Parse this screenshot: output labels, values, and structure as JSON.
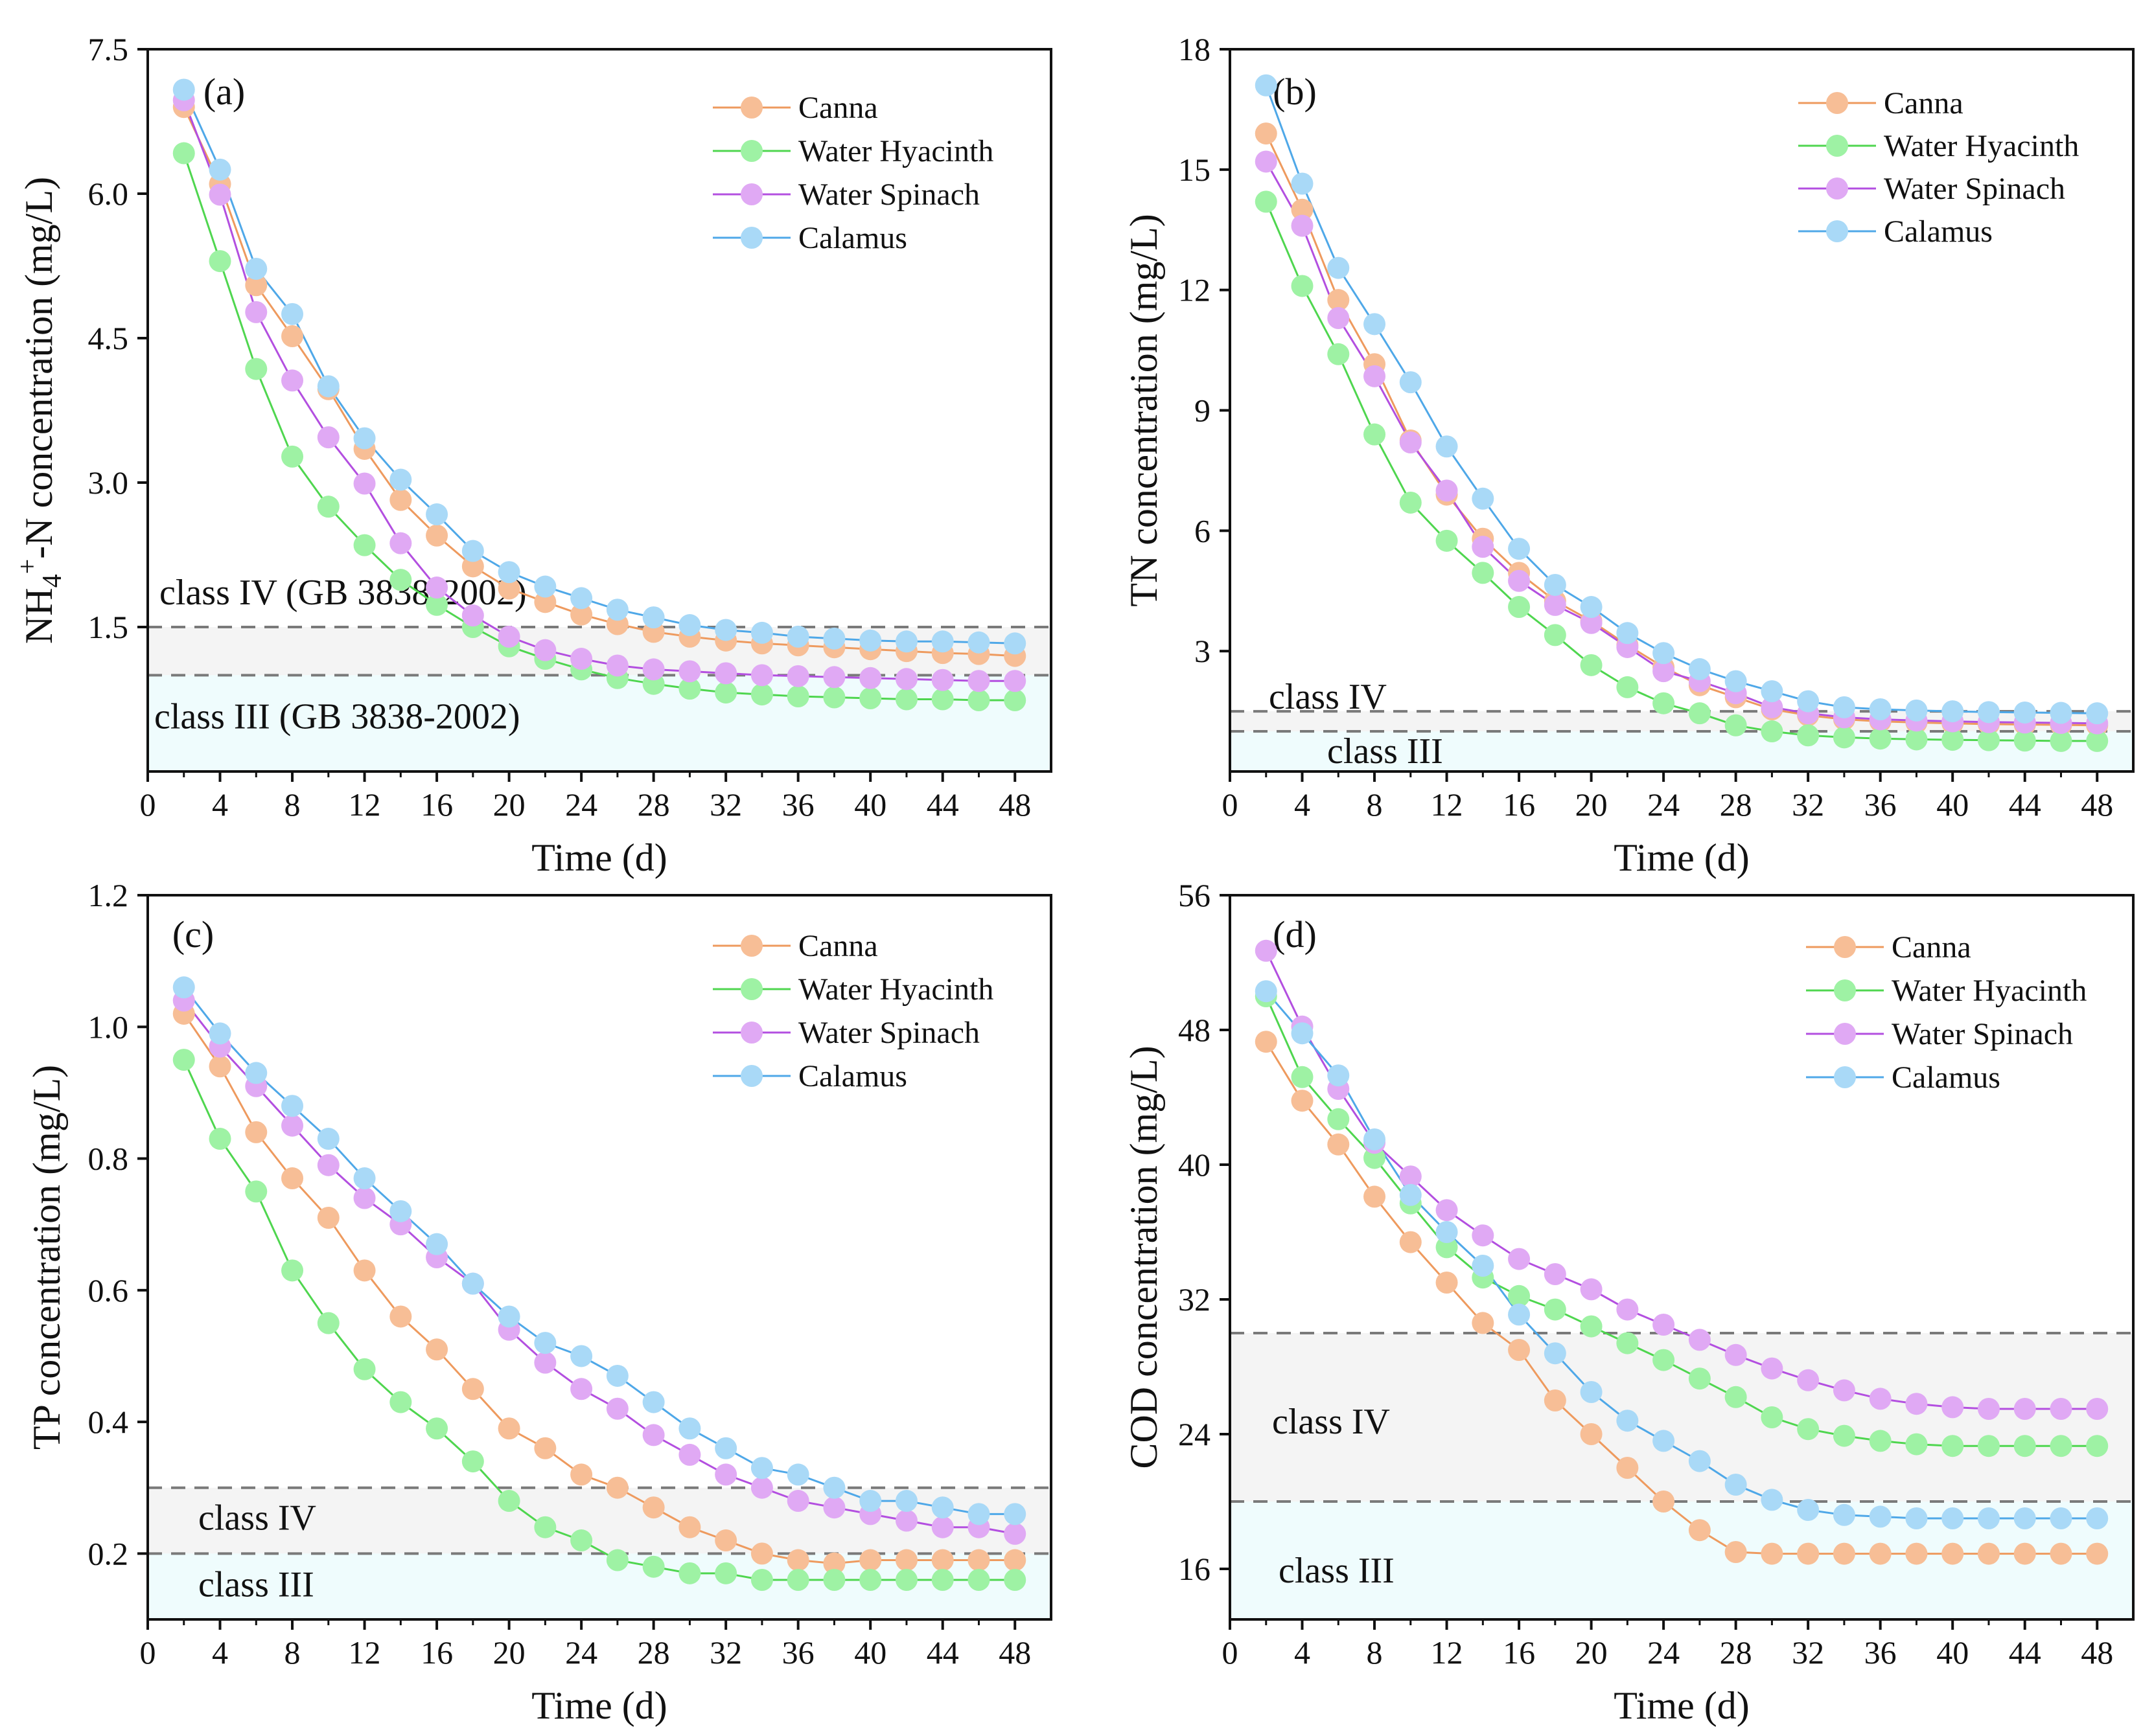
{
  "figure": {
    "legend_entries": [
      "Canna",
      "Water Hyacinth",
      "Water Spinach",
      "Calamus"
    ],
    "series_colors": {
      "Canna": "#f7be96",
      "Water Hyacinth": "#9ef2a4",
      "Water Spinach": "#e0a9f4",
      "Calamus": "#a9d9f7"
    },
    "line_colors": {
      "Canna": "#ee9a5e",
      "Water Hyacinth": "#4fd64f",
      "Water Spinach": "#b34fe0",
      "Calamus": "#4fa8e8"
    },
    "band_colors": {
      "upper": "#f4f4f4",
      "lower": "#effcfd"
    }
  },
  "chart_data": [
    {
      "id": "a",
      "type": "line",
      "panel_label": "(a)",
      "ylabel_main": "NH",
      "ylabel_sub": "4",
      "ylabel_sup": "+",
      "ylabel_rest": "-N concentration (mg/L)",
      "xlabel": "Time (d)",
      "xlim": [
        0,
        50
      ],
      "ylim": [
        0,
        7.5
      ],
      "xticks": [
        0,
        4,
        8,
        12,
        16,
        20,
        24,
        28,
        32,
        36,
        40,
        44,
        48
      ],
      "yticks": [
        1.5,
        3.0,
        4.5,
        6.0,
        7.5
      ],
      "ytick_labels": [
        "1.5",
        "3.0",
        "4.5",
        "6.0",
        "7.5"
      ],
      "x": [
        2,
        4,
        6,
        8,
        10,
        12,
        14,
        16,
        18,
        20,
        22,
        24,
        26,
        28,
        30,
        32,
        34,
        36,
        38,
        40,
        42,
        44,
        46,
        48
      ],
      "thresholds": [
        {
          "value": 1.5,
          "label": "class IV (GB 3838-2002)"
        },
        {
          "value": 1.0,
          "label": "class III (GB 3838-2002)"
        }
      ],
      "series": [
        {
          "name": "Canna",
          "values": [
            6.9,
            6.1,
            5.05,
            4.52,
            3.97,
            3.35,
            2.82,
            2.45,
            2.13,
            1.9,
            1.76,
            1.63,
            1.53,
            1.45,
            1.4,
            1.36,
            1.33,
            1.31,
            1.29,
            1.27,
            1.25,
            1.23,
            1.22,
            1.2
          ]
        },
        {
          "name": "Water Hyacinth",
          "values": [
            6.42,
            5.3,
            4.18,
            3.27,
            2.75,
            2.35,
            1.99,
            1.73,
            1.5,
            1.3,
            1.17,
            1.06,
            0.97,
            0.91,
            0.86,
            0.82,
            0.8,
            0.78,
            0.77,
            0.76,
            0.75,
            0.75,
            0.74,
            0.74
          ]
        },
        {
          "name": "Water Spinach",
          "values": [
            6.97,
            5.99,
            4.77,
            4.06,
            3.47,
            2.99,
            2.37,
            1.91,
            1.62,
            1.4,
            1.26,
            1.17,
            1.1,
            1.06,
            1.04,
            1.02,
            1.0,
            0.99,
            0.98,
            0.97,
            0.96,
            0.95,
            0.94,
            0.94
          ]
        },
        {
          "name": "Calamus",
          "values": [
            7.08,
            6.25,
            5.22,
            4.75,
            4.0,
            3.46,
            3.03,
            2.67,
            2.29,
            2.07,
            1.92,
            1.8,
            1.68,
            1.6,
            1.52,
            1.47,
            1.44,
            1.4,
            1.38,
            1.36,
            1.35,
            1.35,
            1.34,
            1.33
          ]
        }
      ]
    },
    {
      "id": "b",
      "type": "line",
      "panel_label": "(b)",
      "ylabel": "TN concentration (mg/L)",
      "xlabel": "Time (d)",
      "xlim": [
        0,
        50
      ],
      "ylim": [
        0,
        18
      ],
      "xticks": [
        0,
        4,
        8,
        12,
        16,
        20,
        24,
        28,
        32,
        36,
        40,
        44,
        48
      ],
      "yticks": [
        3,
        6,
        9,
        12,
        15,
        18
      ],
      "ytick_labels": [
        "3",
        "6",
        "9",
        "12",
        "15",
        "18"
      ],
      "x": [
        2,
        4,
        6,
        8,
        10,
        12,
        14,
        16,
        18,
        20,
        22,
        24,
        26,
        28,
        30,
        32,
        34,
        36,
        38,
        40,
        42,
        44,
        46,
        48
      ],
      "thresholds": [
        {
          "value": 1.5,
          "label": "class IV"
        },
        {
          "value": 1.0,
          "label": "class III"
        }
      ],
      "series": [
        {
          "name": "Canna",
          "values": [
            15.9,
            14.0,
            11.75,
            10.15,
            8.25,
            6.9,
            5.8,
            4.95,
            4.25,
            3.75,
            3.15,
            2.6,
            2.15,
            1.85,
            1.55,
            1.4,
            1.3,
            1.25,
            1.22,
            1.2,
            1.18,
            1.17,
            1.16,
            1.15
          ]
        },
        {
          "name": "Water Hyacinth",
          "values": [
            14.2,
            12.1,
            10.4,
            8.4,
            6.7,
            5.75,
            4.95,
            4.1,
            3.4,
            2.65,
            2.1,
            1.7,
            1.45,
            1.15,
            1.0,
            0.9,
            0.85,
            0.82,
            0.8,
            0.79,
            0.78,
            0.77,
            0.76,
            0.76
          ]
        },
        {
          "name": "Water Spinach",
          "values": [
            15.2,
            13.6,
            11.3,
            9.85,
            8.2,
            7.0,
            5.6,
            4.75,
            4.15,
            3.7,
            3.1,
            2.5,
            2.25,
            1.95,
            1.6,
            1.45,
            1.35,
            1.3,
            1.27,
            1.25,
            1.23,
            1.22,
            1.21,
            1.2
          ]
        },
        {
          "name": "Calamus",
          "values": [
            17.1,
            14.65,
            12.55,
            11.15,
            9.7,
            8.1,
            6.8,
            5.55,
            4.65,
            4.1,
            3.45,
            2.95,
            2.55,
            2.25,
            2.0,
            1.75,
            1.6,
            1.55,
            1.52,
            1.5,
            1.48,
            1.47,
            1.46,
            1.45
          ]
        }
      ]
    },
    {
      "id": "c",
      "type": "line",
      "panel_label": "(c)",
      "ylabel": "TP concentration (mg/L)",
      "xlabel": "Time (d)",
      "xlim": [
        0,
        50
      ],
      "ylim": [
        0.1,
        1.2
      ],
      "xticks": [
        0,
        4,
        8,
        12,
        16,
        20,
        24,
        28,
        32,
        36,
        40,
        44,
        48
      ],
      "yticks": [
        0.2,
        0.4,
        0.6,
        0.8,
        1.0,
        1.2
      ],
      "ytick_labels": [
        "0.2",
        "0.4",
        "0.6",
        "0.8",
        "1.0",
        "1.2"
      ],
      "x": [
        2,
        4,
        6,
        8,
        10,
        12,
        14,
        16,
        18,
        20,
        22,
        24,
        26,
        28,
        30,
        32,
        34,
        36,
        38,
        40,
        42,
        44,
        46,
        48
      ],
      "thresholds": [
        {
          "value": 0.3,
          "label": "class IV"
        },
        {
          "value": 0.2,
          "label": "class III"
        }
      ],
      "series": [
        {
          "name": "Canna",
          "values": [
            1.02,
            0.94,
            0.84,
            0.77,
            0.71,
            0.63,
            0.56,
            0.51,
            0.45,
            0.39,
            0.36,
            0.32,
            0.3,
            0.27,
            0.24,
            0.22,
            0.2,
            0.19,
            0.185,
            0.19,
            0.19,
            0.19,
            0.19,
            0.19
          ]
        },
        {
          "name": "Water Hyacinth",
          "values": [
            0.95,
            0.83,
            0.75,
            0.63,
            0.55,
            0.48,
            0.43,
            0.39,
            0.34,
            0.28,
            0.24,
            0.22,
            0.19,
            0.18,
            0.17,
            0.17,
            0.16,
            0.16,
            0.16,
            0.16,
            0.16,
            0.16,
            0.16,
            0.16
          ]
        },
        {
          "name": "Water Spinach",
          "values": [
            1.04,
            0.97,
            0.91,
            0.85,
            0.79,
            0.74,
            0.7,
            0.65,
            0.61,
            0.54,
            0.49,
            0.45,
            0.42,
            0.38,
            0.35,
            0.32,
            0.3,
            0.28,
            0.27,
            0.26,
            0.25,
            0.24,
            0.24,
            0.23
          ]
        },
        {
          "name": "Calamus",
          "values": [
            1.06,
            0.99,
            0.93,
            0.88,
            0.83,
            0.77,
            0.72,
            0.67,
            0.61,
            0.56,
            0.52,
            0.5,
            0.47,
            0.43,
            0.39,
            0.36,
            0.33,
            0.32,
            0.3,
            0.28,
            0.28,
            0.27,
            0.26,
            0.26
          ]
        }
      ]
    },
    {
      "id": "d",
      "type": "line",
      "panel_label": "(d)",
      "ylabel": "COD concentration (mg/L)",
      "xlabel": "Time (d)",
      "xlim": [
        0,
        50
      ],
      "ylim": [
        13,
        56
      ],
      "xticks": [
        0,
        4,
        8,
        12,
        16,
        20,
        24,
        28,
        32,
        36,
        40,
        44,
        48
      ],
      "yticks": [
        16,
        24,
        32,
        40,
        48,
        56
      ],
      "ytick_labels": [
        "16",
        "24",
        "32",
        "40",
        "48",
        "56"
      ],
      "x": [
        2,
        4,
        6,
        8,
        10,
        12,
        14,
        16,
        18,
        20,
        22,
        24,
        26,
        28,
        30,
        32,
        34,
        36,
        38,
        40,
        42,
        44,
        46,
        48
      ],
      "thresholds": [
        {
          "value": 30,
          "label": "class IV"
        },
        {
          "value": 20,
          "label": "class III"
        }
      ],
      "series": [
        {
          "name": "Canna",
          "values": [
            47.3,
            43.8,
            41.2,
            38.1,
            35.4,
            33.0,
            30.6,
            29.0,
            26.0,
            24.0,
            22.0,
            20.0,
            18.3,
            17.0,
            16.9,
            16.9,
            16.9,
            16.9,
            16.9,
            16.9,
            16.9,
            16.9,
            16.9,
            16.9
          ]
        },
        {
          "name": "Water Hyacinth",
          "values": [
            50.0,
            45.2,
            42.7,
            40.4,
            37.7,
            35.1,
            33.3,
            32.2,
            31.4,
            30.4,
            29.4,
            28.4,
            27.3,
            26.2,
            25.0,
            24.3,
            23.9,
            23.6,
            23.4,
            23.3,
            23.3,
            23.3,
            23.3,
            23.3
          ]
        },
        {
          "name": "Water Spinach",
          "values": [
            52.7,
            48.2,
            44.5,
            41.3,
            39.3,
            37.3,
            35.8,
            34.4,
            33.5,
            32.6,
            31.4,
            30.5,
            29.6,
            28.7,
            27.9,
            27.2,
            26.6,
            26.1,
            25.8,
            25.6,
            25.5,
            25.5,
            25.5,
            25.5
          ]
        },
        {
          "name": "Calamus",
          "values": [
            50.3,
            47.8,
            45.3,
            41.5,
            38.2,
            36.0,
            34.0,
            31.1,
            28.8,
            26.5,
            24.8,
            23.6,
            22.4,
            21.0,
            20.1,
            19.5,
            19.2,
            19.1,
            19.0,
            19.0,
            19.0,
            19.0,
            19.0,
            19.0
          ]
        }
      ]
    }
  ]
}
